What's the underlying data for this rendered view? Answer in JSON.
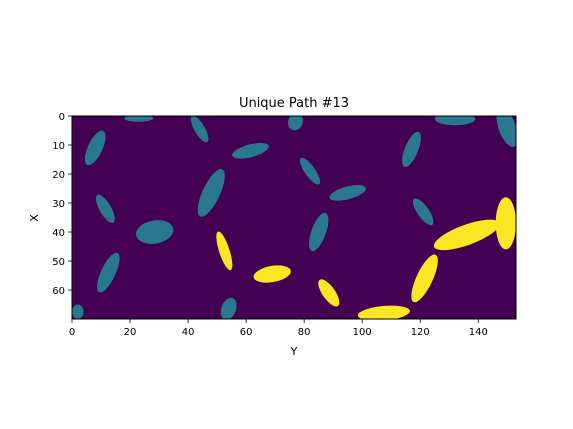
{
  "chart_data": {
    "type": "heatmap",
    "title": "Unique Path #13",
    "xlabel": "Y",
    "ylabel": "X",
    "xlim": [
      0,
      153
    ],
    "ylim": [
      70,
      0
    ],
    "x_ticks": [
      0,
      20,
      40,
      60,
      80,
      100,
      120,
      140
    ],
    "y_ticks": [
      0,
      10,
      20,
      30,
      40,
      50,
      60
    ],
    "grid": false,
    "colormap": "viridis",
    "cell_values": {
      "free": 0,
      "obstacle": 0.5,
      "path": 1
    },
    "colors": {
      "free": "#440154",
      "obstacle": "#2a788e",
      "path": "#fde725"
    },
    "obstacles": [
      {
        "center": [
          8,
          11
        ],
        "rx": 2.5,
        "ry": 6.5,
        "angle": 25
      },
      {
        "center": [
          23,
          0.8
        ],
        "rx": 5,
        "ry": 1.2,
        "angle": 0
      },
      {
        "center": [
          44,
          4.5
        ],
        "rx": 1.8,
        "ry": 5.2,
        "angle": -30
      },
      {
        "center": [
          77,
          2
        ],
        "rx": 2.5,
        "ry": 3,
        "angle": 20
      },
      {
        "center": [
          61.5,
          12
        ],
        "rx": 6.5,
        "ry": 2.2,
        "angle": -15
      },
      {
        "center": [
          48,
          26.5
        ],
        "rx": 3,
        "ry": 9,
        "angle": 25
      },
      {
        "center": [
          82,
          19
        ],
        "rx": 1.8,
        "ry": 5.5,
        "angle": -35
      },
      {
        "center": [
          117,
          11.5
        ],
        "rx": 2.3,
        "ry": 6.5,
        "angle": 22
      },
      {
        "center": [
          132,
          1
        ],
        "rx": 7,
        "ry": 2.2,
        "angle": 0
      },
      {
        "center": [
          150,
          4
        ],
        "rx": 3,
        "ry": 7,
        "angle": -20
      },
      {
        "center": [
          11.5,
          32
        ],
        "rx": 2,
        "ry": 5.5,
        "angle": -30
      },
      {
        "center": [
          28.5,
          40
        ],
        "rx": 6.5,
        "ry": 4,
        "angle": -10
      },
      {
        "center": [
          12.5,
          54
        ],
        "rx": 2.5,
        "ry": 7.5,
        "angle": 25
      },
      {
        "center": [
          95,
          26.5
        ],
        "rx": 6.5,
        "ry": 2.2,
        "angle": -15
      },
      {
        "center": [
          85,
          40
        ],
        "rx": 2.5,
        "ry": 7,
        "angle": 20
      },
      {
        "center": [
          121,
          33
        ],
        "rx": 2,
        "ry": 5.5,
        "angle": -35
      },
      {
        "center": [
          2,
          67.5
        ],
        "rx": 2,
        "ry": 2.5,
        "angle": 0
      },
      {
        "center": [
          54,
          66.5
        ],
        "rx": 2.5,
        "ry": 4,
        "angle": 20
      }
    ],
    "path_cells": [
      {
        "center": [
          52.5,
          46.5
        ],
        "rx": 1.8,
        "ry": 7,
        "angle": -18
      },
      {
        "center": [
          69,
          54.5
        ],
        "rx": 6.5,
        "ry": 2.8,
        "angle": -10
      },
      {
        "center": [
          88.5,
          61
        ],
        "rx": 2.2,
        "ry": 5.5,
        "angle": -35
      },
      {
        "center": [
          121.5,
          56
        ],
        "rx": 2.8,
        "ry": 9,
        "angle": 25
      },
      {
        "center": [
          107.5,
          68
        ],
        "rx": 9,
        "ry": 2.5,
        "angle": -5
      },
      {
        "center": [
          136,
          41
        ],
        "rx": 12,
        "ry": 3.5,
        "angle": -20
      },
      {
        "center": [
          149.5,
          37
        ],
        "rx": 3.5,
        "ry": 9,
        "angle": 0
      }
    ]
  }
}
